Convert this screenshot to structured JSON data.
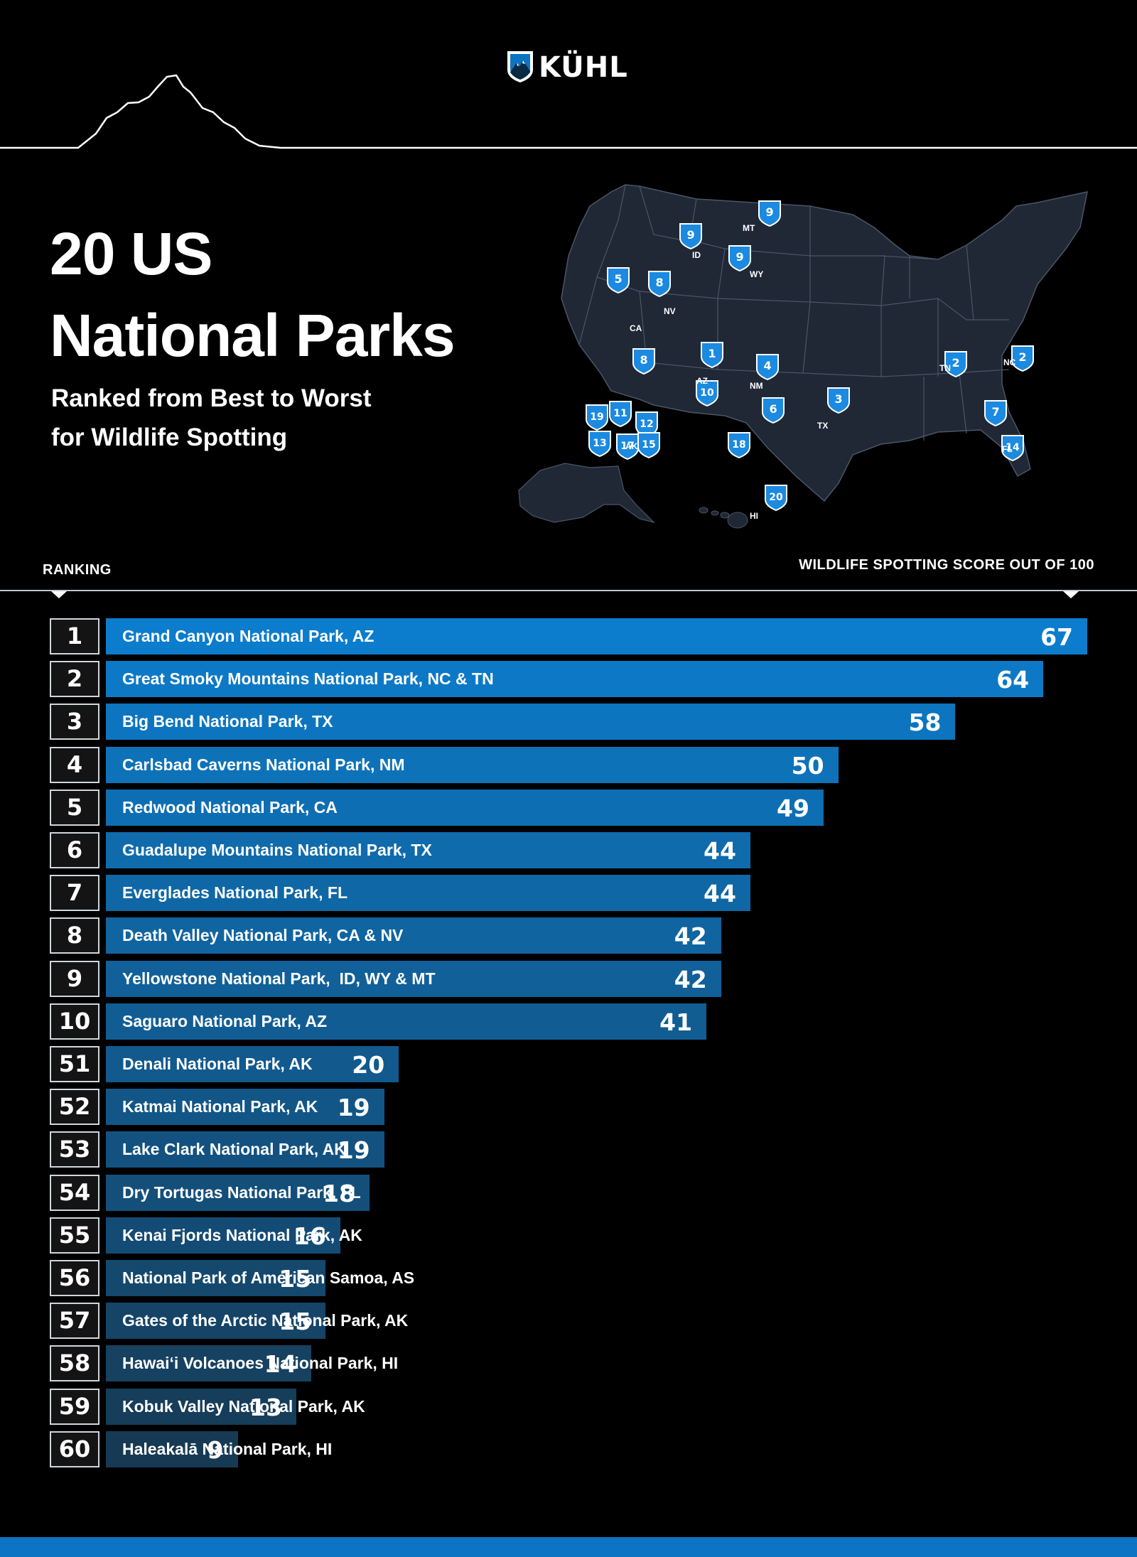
{
  "brand": {
    "name": "KÜHL",
    "logo_icon": "mountain-shield-icon"
  },
  "title": {
    "line1": "20 US",
    "line2": "National Parks"
  },
  "subtitle": {
    "line1": "Ranked from Best to Worst",
    "line2": "for Wildlife Spotting"
  },
  "map": {
    "state_labels": [
      "MT",
      "ID",
      "WY",
      "NV",
      "CA",
      "AZ",
      "NM",
      "TX",
      "TN",
      "NC",
      "FL",
      "AK",
      "HI"
    ],
    "pins": [
      "9",
      "9",
      "9",
      "5",
      "8",
      "8",
      "1",
      "4",
      "10",
      "6",
      "3",
      "2",
      "2",
      "7",
      "14",
      "19",
      "11",
      "12",
      "13",
      "17",
      "15",
      "18",
      "20"
    ]
  },
  "axis": {
    "ranking_label": "RANKING",
    "score_label": "WILDLIFE SPOTTING SCORE OUT OF 100"
  },
  "colors": {
    "background": "#000000",
    "accent": "#0c74c2",
    "top_bar": "#0c7ccc",
    "bottom_bar": "#173a54"
  },
  "chart_data": {
    "type": "bar",
    "orientation": "horizontal",
    "title": "20 US National Parks Ranked from Best to Worst for Wildlife Spotting",
    "xlabel": "WILDLIFE SPOTTING SCORE OUT OF 100",
    "ylabel": "RANKING",
    "xlim": [
      0,
      100
    ],
    "categories": [
      "Grand Canyon National Park, AZ",
      "Great Smoky Mountains National Park, NC & TN",
      "Big Bend National Park, TX",
      "Carlsbad Caverns National Park, NM",
      "Redwood National Park, CA",
      "Guadalupe Mountains National Park, TX",
      "Everglades National Park, FL",
      "Death Valley National Park, CA & NV",
      "Yellowstone National Park,  ID, WY & MT",
      "Saguaro National Park, AZ",
      "Denali National Park, AK",
      "Katmai National Park, AK",
      "Lake Clark National Park, AK",
      "Dry Tortugas National Park, FL",
      "Kenai Fjords National Park, AK",
      "National Park of American Samoa, AS",
      "Gates of the Arctic National Park, AK",
      "Hawaiʻi Volcanoes National Park, HI",
      "Kobuk Valley National Park, AK",
      "Haleakalā National Park, HI"
    ],
    "ranks": [
      "1",
      "2",
      "3",
      "4",
      "5",
      "6",
      "7",
      "8",
      "9",
      "10",
      "51",
      "52",
      "53",
      "54",
      "55",
      "56",
      "57",
      "58",
      "59",
      "60"
    ],
    "values": [
      67,
      64,
      58,
      50,
      49,
      44,
      44,
      42,
      42,
      41,
      20,
      19,
      19,
      18,
      16,
      15,
      15,
      14,
      13,
      9
    ]
  }
}
